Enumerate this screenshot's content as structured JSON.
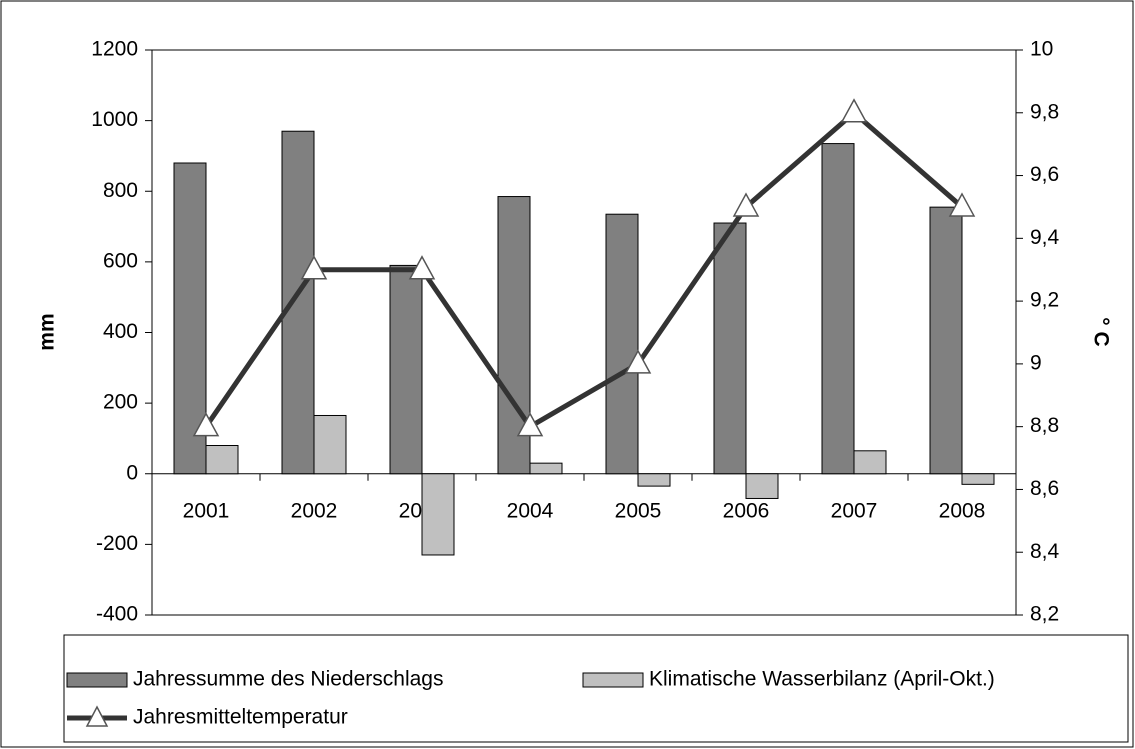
{
  "chart_data": {
    "type": "bar",
    "categories": [
      "2001",
      "2002",
      "2003",
      "2004",
      "2005",
      "2006",
      "2007",
      "2008"
    ],
    "series": [
      {
        "name": "Jahressumme des Niederschlags",
        "color": "#808080",
        "values": [
          880,
          970,
          590,
          785,
          735,
          710,
          935,
          755
        ]
      },
      {
        "name": "Klimatische Wasserbilanz (April-Okt.)",
        "color": "#c0c0c0",
        "values": [
          80,
          165,
          -230,
          30,
          -35,
          -70,
          65,
          -30
        ]
      },
      {
        "name": "Jahresmitteltemperatur",
        "type": "line",
        "axis": "y2",
        "color": "#333333",
        "values": [
          8.8,
          9.3,
          9.3,
          8.8,
          9.0,
          9.5,
          9.8,
          9.5
        ]
      }
    ],
    "ylabel": "mm",
    "y2label": "° C",
    "ylim": [
      -400,
      1200
    ],
    "yticks": [
      -400,
      -200,
      0,
      200,
      400,
      600,
      800,
      1000,
      1200
    ],
    "y2lim": [
      8.2,
      10
    ],
    "y2ticks": [
      {
        "value": 8.2,
        "label": "8,2"
      },
      {
        "value": 8.4,
        "label": "8,4"
      },
      {
        "value": 8.6,
        "label": "8,6"
      },
      {
        "value": 8.8,
        "label": "8,8"
      },
      9,
      {
        "value": 9.2,
        "label": "9,2"
      },
      {
        "value": 9.4,
        "label": "9,4"
      },
      {
        "value": 9.6,
        "label": "9,6"
      },
      {
        "value": 9.8,
        "label": "9,8"
      },
      10
    ]
  }
}
